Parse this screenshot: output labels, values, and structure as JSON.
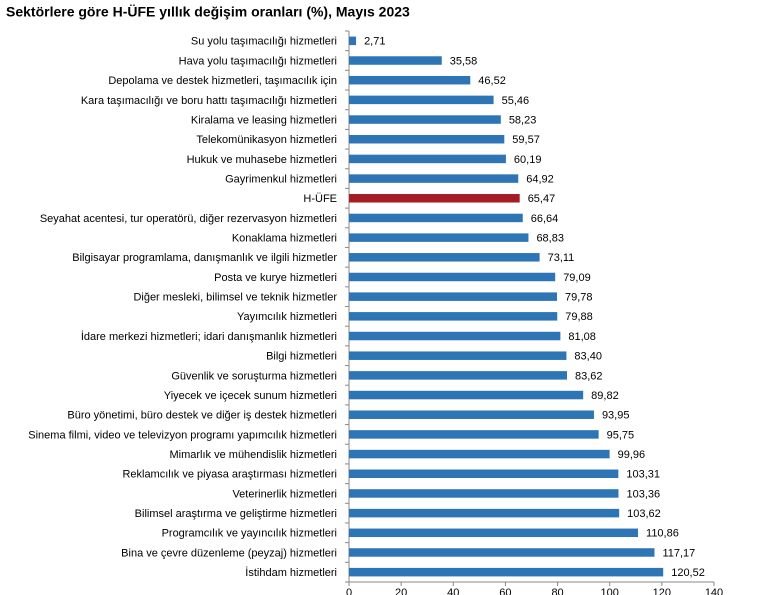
{
  "chart_data": {
    "type": "hbar",
    "title": "Sektörlere göre H-ÜFE yıllık değişim oranları (%), Mayıs 2023",
    "categories": [
      "Su yolu taşımacılığı hizmetleri",
      "Hava yolu taşımacılığı hizmetleri",
      "Depolama ve destek hizmetleri, taşımacılık için",
      "Kara taşımacılığı ve boru hattı taşımacılığı hizmetleri",
      "Kiralama ve leasing hizmetleri",
      "Telekomünikasyon hizmetleri",
      "Hukuk ve muhasebe hizmetleri",
      "Gayrimenkul hizmetleri",
      "H-ÜFE",
      "Seyahat acentesi, tur operatörü, diğer rezervasyon hizmetleri",
      "Konaklama hizmetleri",
      "Bilgisayar programlama, danışmanlık ve ilgili hizmetler",
      "Posta ve kurye hizmetleri",
      "Diğer mesleki, bilimsel ve teknik hizmetler",
      "Yayımcılık hizmetleri",
      "İdare merkezi hizmetleri; idari danışmanlık hizmetleri",
      "Bilgi hizmetleri",
      "Güvenlik ve soruşturma hizmetleri",
      "Yiyecek ve içecek sunum hizmetleri",
      "Büro yönetimi, büro destek ve diğer iş destek hizmetleri",
      "Sinema filmi, video ve televizyon programı yapımcılık hizmetleri",
      "Mimarlık ve mühendislik hizmetleri",
      "Reklamcılık ve piyasa araştırması hizmetleri",
      "Veterinerlik hizmetleri",
      "Bilimsel araştırma ve geliştirme hizmetleri",
      "Programcılık ve yayıncılık hizmetleri",
      "Bina ve çevre düzenleme (peyzaj) hizmetleri",
      "İstihdam hizmetleri"
    ],
    "values": [
      2.71,
      35.58,
      46.52,
      55.46,
      58.23,
      59.57,
      60.19,
      64.92,
      65.47,
      66.64,
      68.83,
      73.11,
      79.09,
      79.78,
      79.88,
      81.08,
      83.4,
      83.62,
      89.82,
      93.95,
      95.75,
      99.96,
      103.31,
      103.36,
      103.62,
      110.86,
      117.17,
      120.52
    ],
    "value_labels": [
      "2,71",
      "35,58",
      "46,52",
      "55,46",
      "58,23",
      "59,57",
      "60,19",
      "64,92",
      "65,47",
      "66,64",
      "68,83",
      "73,11",
      "79,09",
      "79,78",
      "79,88",
      "81,08",
      "83,40",
      "83,62",
      "89,82",
      "93,95",
      "95,75",
      "99,96",
      "103,31",
      "103,36",
      "103,62",
      "110,86",
      "117,17",
      "120,52"
    ],
    "colors": [
      "#2e75b6",
      "#2e75b6",
      "#2e75b6",
      "#2e75b6",
      "#2e75b6",
      "#2e75b6",
      "#2e75b6",
      "#2e75b6",
      "#a51c24",
      "#2e75b6",
      "#2e75b6",
      "#2e75b6",
      "#2e75b6",
      "#2e75b6",
      "#2e75b6",
      "#2e75b6",
      "#2e75b6",
      "#2e75b6",
      "#2e75b6",
      "#2e75b6",
      "#2e75b6",
      "#2e75b6",
      "#2e75b6",
      "#2e75b6",
      "#2e75b6",
      "#2e75b6",
      "#2e75b6",
      "#2e75b6"
    ],
    "xlim": [
      0,
      140
    ],
    "xticks": [
      0,
      20,
      40,
      60,
      80,
      100,
      120,
      140
    ],
    "grid": false
  }
}
